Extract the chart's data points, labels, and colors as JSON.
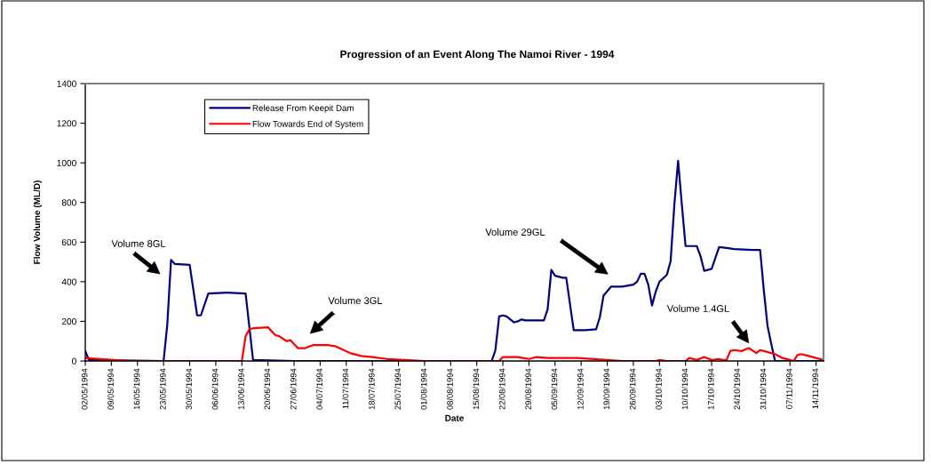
{
  "chart_data": {
    "type": "line",
    "title": "Progression of an Event Along The Namoi River - 1994",
    "xlabel": "Date",
    "ylabel": "Flow Volume (ML/D)",
    "xlim": [
      "1994-05-02",
      "1994-11-16"
    ],
    "ylim": [
      0,
      1400
    ],
    "yticks": [
      0,
      200,
      400,
      600,
      800,
      1000,
      1200,
      1400
    ],
    "xticks": [
      {
        "value": "1994-05-02",
        "label": "02/05/1994"
      },
      {
        "value": "1994-05-09",
        "label": "09/05/1994"
      },
      {
        "value": "1994-05-16",
        "label": "16/05/1994"
      },
      {
        "value": "1994-05-23",
        "label": "23/05/1994"
      },
      {
        "value": "1994-05-30",
        "label": "30/05/1994"
      },
      {
        "value": "1994-06-06",
        "label": "06/06/1994"
      },
      {
        "value": "1994-06-13",
        "label": "13/06/1994"
      },
      {
        "value": "1994-06-20",
        "label": "20/06/1994"
      },
      {
        "value": "1994-06-27",
        "label": "27/06/1994"
      },
      {
        "value": "1994-07-04",
        "label": "04/07/1994"
      },
      {
        "value": "1994-07-11",
        "label": "11/07/1994"
      },
      {
        "value": "1994-07-18",
        "label": "18/07/1994"
      },
      {
        "value": "1994-07-25",
        "label": "25/07/1994"
      },
      {
        "value": "1994-08-01",
        "label": "01/08/1994"
      },
      {
        "value": "1994-08-08",
        "label": "08/08/1994"
      },
      {
        "value": "1994-08-15",
        "label": "15/08/1994"
      },
      {
        "value": "1994-08-22",
        "label": "22/08/1994"
      },
      {
        "value": "1994-08-29",
        "label": "29/08/1994"
      },
      {
        "value": "1994-09-05",
        "label": "05/09/1994"
      },
      {
        "value": "1994-09-12",
        "label": "12/09/1994"
      },
      {
        "value": "1994-09-19",
        "label": "19/09/1994"
      },
      {
        "value": "1994-09-26",
        "label": "26/09/1994"
      },
      {
        "value": "1994-10-03",
        "label": "03/10/1994"
      },
      {
        "value": "1994-10-10",
        "label": "10/10/1994"
      },
      {
        "value": "1994-10-17",
        "label": "17/10/1994"
      },
      {
        "value": "1994-10-24",
        "label": "24/10/1994"
      },
      {
        "value": "1994-10-31",
        "label": "31/10/1994"
      },
      {
        "value": "1994-11-07",
        "label": "07/11/1994"
      },
      {
        "value": "1994-11-14",
        "label": "14/11/1994"
      }
    ],
    "legend": "top left",
    "line_style": "solid",
    "series": [
      {
        "name": "Release From Keepit Dam",
        "color": "#000080",
        "x": [
          "1994-05-02",
          "1994-05-03",
          "1994-05-23",
          "1994-05-24",
          "1994-05-25",
          "1994-05-26",
          "1994-05-30",
          "1994-06-01",
          "1994-06-02",
          "1994-06-04",
          "1994-06-09",
          "1994-06-14",
          "1994-06-16",
          "1994-06-27",
          "1994-08-19",
          "1994-08-20",
          "1994-08-21",
          "1994-08-22",
          "1994-08-23",
          "1994-08-25",
          "1994-08-26",
          "1994-08-27",
          "1994-08-28",
          "1994-09-02",
          "1994-09-03",
          "1994-09-04",
          "1994-09-05",
          "1994-09-07",
          "1994-09-08",
          "1994-09-10",
          "1994-09-13",
          "1994-09-16",
          "1994-09-17",
          "1994-09-18",
          "1994-09-20",
          "1994-09-23",
          "1994-09-26",
          "1994-09-27",
          "1994-09-28",
          "1994-09-29",
          "1994-09-30",
          "1994-10-01",
          "1994-10-02",
          "1994-10-03",
          "1994-10-05",
          "1994-10-06",
          "1994-10-07",
          "1994-10-08",
          "1994-10-09",
          "1994-10-10",
          "1994-10-13",
          "1994-10-14",
          "1994-10-15",
          "1994-10-17",
          "1994-10-19",
          "1994-10-21",
          "1994-10-23",
          "1994-10-28",
          "1994-10-30",
          "1994-10-31",
          "1994-11-01",
          "1994-11-02",
          "1994-11-03",
          "1994-11-16"
        ],
        "values": [
          50,
          5,
          0,
          185,
          510,
          490,
          485,
          230,
          230,
          340,
          345,
          340,
          5,
          0,
          0,
          55,
          225,
          230,
          225,
          195,
          200,
          210,
          205,
          205,
          260,
          460,
          430,
          420,
          420,
          155,
          155,
          160,
          220,
          330,
          375,
          375,
          385,
          400,
          440,
          440,
          385,
          280,
          350,
          400,
          435,
          505,
          790,
          1010,
          790,
          580,
          580,
          530,
          455,
          465,
          575,
          570,
          565,
          560,
          560,
          355,
          175,
          85,
          0,
          0
        ]
      },
      {
        "name": "Flow Towards End of System",
        "color": "#ff0000",
        "x": [
          "1994-05-02",
          "1994-05-06",
          "1994-05-10",
          "1994-05-14",
          "1994-06-13",
          "1994-06-14",
          "1994-06-15",
          "1994-06-16",
          "1994-06-20",
          "1994-06-22",
          "1994-06-23",
          "1994-06-25",
          "1994-06-26",
          "1994-06-28",
          "1994-06-30",
          "1994-07-02",
          "1994-07-06",
          "1994-07-08",
          "1994-07-12",
          "1994-07-15",
          "1994-07-18",
          "1994-07-22",
          "1994-07-27",
          "1994-08-01",
          "1994-08-21",
          "1994-08-22",
          "1994-08-23",
          "1994-08-26",
          "1994-08-29",
          "1994-08-31",
          "1994-09-03",
          "1994-09-11",
          "1994-09-19",
          "1994-09-23",
          "1994-10-02",
          "1994-10-03",
          "1994-10-05",
          "1994-10-10",
          "1994-10-11",
          "1994-10-12",
          "1994-10-13",
          "1994-10-15",
          "1994-10-17",
          "1994-10-19",
          "1994-10-20",
          "1994-10-21",
          "1994-10-22",
          "1994-10-23",
          "1994-10-25",
          "1994-10-27",
          "1994-10-29",
          "1994-10-30",
          "1994-10-31",
          "1994-11-03",
          "1994-11-05",
          "1994-11-07",
          "1994-11-08",
          "1994-11-09",
          "1994-11-10",
          "1994-11-12",
          "1994-11-14",
          "1994-11-16"
        ],
        "values": [
          15,
          10,
          5,
          0,
          0,
          125,
          160,
          165,
          170,
          130,
          125,
          100,
          105,
          65,
          65,
          80,
          80,
          75,
          40,
          25,
          20,
          10,
          5,
          0,
          0,
          20,
          20,
          20,
          10,
          20,
          15,
          15,
          5,
          0,
          0,
          5,
          0,
          0,
          15,
          10,
          5,
          20,
          5,
          10,
          5,
          5,
          50,
          55,
          50,
          65,
          40,
          55,
          50,
          35,
          15,
          5,
          0,
          30,
          35,
          25,
          15,
          5
        ]
      }
    ],
    "annotations": [
      "Volume 8GL",
      "Volume 3GL",
      "Volume 29GL",
      "Volume 1.4GL"
    ]
  }
}
